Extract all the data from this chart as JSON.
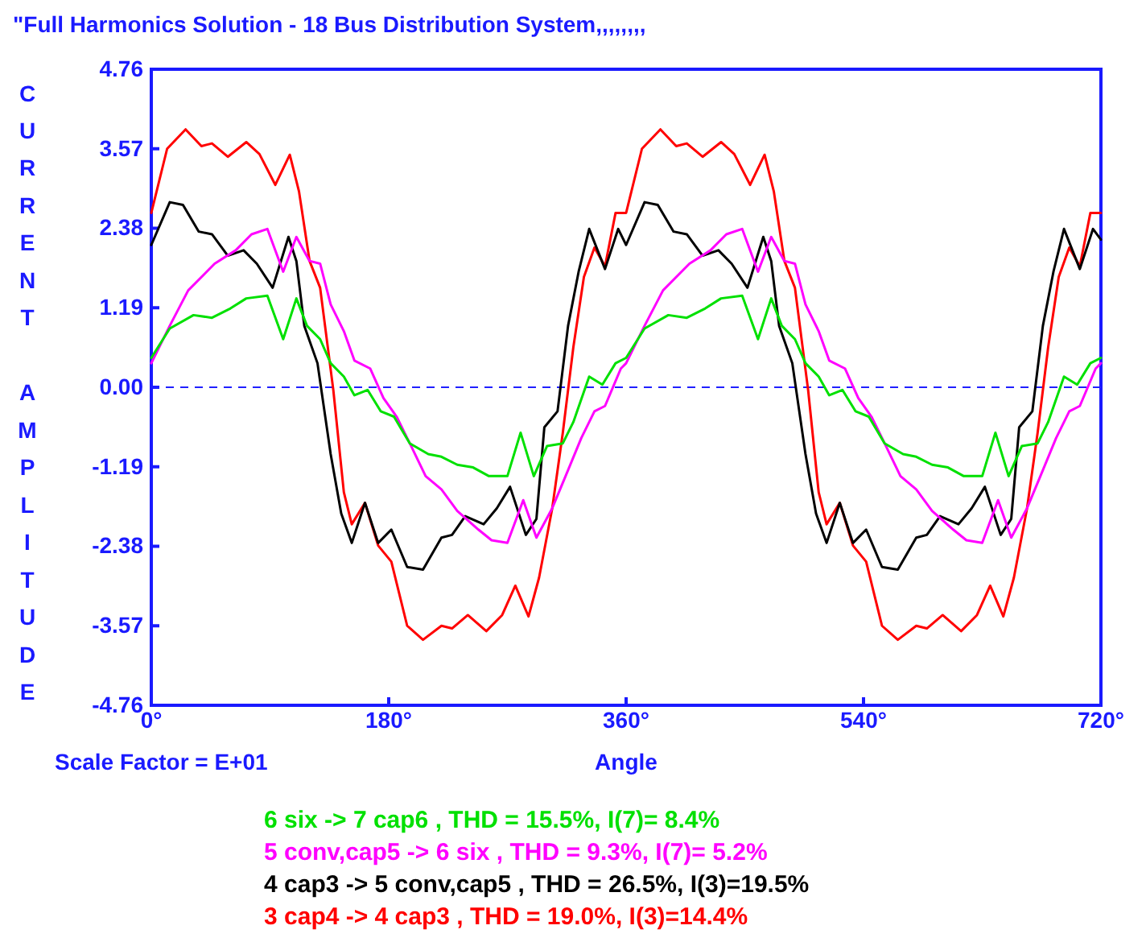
{
  "chart_data": {
    "type": "line",
    "title": "\"Full Harmonics Solution - 18 Bus Distribution System,,,,,,,,",
    "xlabel": "Angle",
    "ylabel": "CURRENT AMPLITUDE",
    "annotations": [
      "Scale Factor = E+01"
    ],
    "xlim": [
      0,
      720
    ],
    "xticks": [
      {
        "value": 0,
        "label": "0°"
      },
      {
        "value": 180,
        "label": "180°"
      },
      {
        "value": 360,
        "label": "360°"
      },
      {
        "value": 540,
        "label": "540°"
      },
      {
        "value": 720,
        "label": "720°"
      }
    ],
    "ylim": [
      -4.76,
      4.76
    ],
    "yticks": [
      -4.76,
      -3.57,
      -2.38,
      -1.19,
      {
        "value": 0,
        "label": "0.00"
      },
      1.19,
      2.38,
      3.57,
      4.76
    ],
    "grid": false,
    "legend": "bottom",
    "marker": "none",
    "line_style": "solid",
    "ref_lines": [
      {
        "axis": "y",
        "value": 0,
        "color": "#2020ff",
        "line_style": "dashed"
      }
    ],
    "series": [
      {
        "name": "6 six -> 7 cap6 , THD = 15.5%, I(7)= 8.4%",
        "color": "#00e000",
        "x": [
          0,
          14,
          32,
          46,
          60,
          72,
          88,
          100,
          110,
          118,
          128,
          136,
          146,
          154,
          164,
          174,
          184,
          196,
          210,
          220,
          232,
          244,
          256,
          270,
          280,
          290,
          300,
          312,
          320,
          332,
          342,
          352,
          360,
          374,
          392,
          406,
          420,
          432,
          448,
          460,
          470,
          478,
          488,
          496,
          506,
          514,
          524,
          534,
          544,
          556,
          570,
          580,
          592,
          604,
          616,
          630,
          640,
          650,
          660,
          672,
          680,
          692,
          702,
          712,
          720
        ],
        "values": [
          0.44,
          0.88,
          1.08,
          1.04,
          1.18,
          1.33,
          1.37,
          0.72,
          1.33,
          0.92,
          0.72,
          0.36,
          0.16,
          -0.12,
          -0.04,
          -0.36,
          -0.44,
          -0.84,
          -1.0,
          -1.04,
          -1.16,
          -1.2,
          -1.33,
          -1.33,
          -0.68,
          -1.33,
          -0.88,
          -0.84,
          -0.52,
          0.16,
          0.04,
          0.36,
          0.44,
          0.88,
          1.08,
          1.04,
          1.18,
          1.33,
          1.37,
          0.72,
          1.33,
          0.92,
          0.72,
          0.36,
          0.16,
          -0.12,
          -0.04,
          -0.36,
          -0.44,
          -0.84,
          -1.0,
          -1.04,
          -1.16,
          -1.2,
          -1.33,
          -1.33,
          -0.68,
          -1.33,
          -0.88,
          -0.84,
          -0.52,
          0.16,
          0.04,
          0.36,
          0.44
        ]
      },
      {
        "name": "5 conv,cap5 -> 6 six , THD = 9.3%, I(7)= 5.2%",
        "color": "#ff00ff",
        "x": [
          0,
          14,
          28,
          48,
          64,
          76,
          88,
          100,
          110,
          120,
          128,
          136,
          146,
          154,
          166,
          176,
          186,
          196,
          208,
          220,
          232,
          248,
          258,
          270,
          282,
          292,
          304,
          316,
          326,
          336,
          344,
          356,
          360,
          374,
          388,
          408,
          424,
          436,
          448,
          460,
          470,
          480,
          488,
          496,
          506,
          514,
          526,
          536,
          546,
          556,
          568,
          580,
          592,
          608,
          618,
          630,
          642,
          652,
          664,
          676,
          686,
          696,
          704,
          716,
          720
        ],
        "values": [
          0.36,
          0.92,
          1.45,
          1.85,
          2.05,
          2.29,
          2.37,
          1.73,
          2.25,
          1.89,
          1.85,
          1.24,
          0.84,
          0.4,
          0.28,
          -0.16,
          -0.44,
          -0.84,
          -1.33,
          -1.53,
          -1.85,
          -2.13,
          -2.29,
          -2.33,
          -1.69,
          -2.25,
          -1.81,
          -1.24,
          -0.76,
          -0.36,
          -0.28,
          0.28,
          0.36,
          0.92,
          1.45,
          1.85,
          2.05,
          2.29,
          2.37,
          1.73,
          2.25,
          1.89,
          1.85,
          1.24,
          0.84,
          0.4,
          0.28,
          -0.16,
          -0.44,
          -0.84,
          -1.33,
          -1.53,
          -1.85,
          -2.13,
          -2.29,
          -2.33,
          -1.69,
          -2.25,
          -1.81,
          -1.24,
          -0.76,
          -0.36,
          -0.28,
          0.28,
          0.36
        ]
      },
      {
        "name": "4 cap3 -> 5 conv,cap5 , THD = 26.5%, I(3)=19.5%",
        "color": "#000000",
        "x": [
          0,
          14,
          24,
          36,
          46,
          58,
          70,
          80,
          92,
          104,
          110,
          116,
          126,
          136,
          144,
          152,
          162,
          172,
          182,
          194,
          206,
          220,
          228,
          238,
          252,
          262,
          272,
          284,
          292,
          298,
          308,
          316,
          324,
          332,
          344,
          354,
          360,
          374,
          384,
          396,
          406,
          418,
          430,
          440,
          452,
          464,
          470,
          476,
          486,
          496,
          504,
          512,
          522,
          532,
          542,
          554,
          566,
          580,
          588,
          598,
          612,
          622,
          632,
          644,
          652,
          658,
          668,
          676,
          684,
          692,
          704,
          714,
          720
        ],
        "values": [
          2.13,
          2.77,
          2.73,
          2.33,
          2.29,
          1.97,
          2.05,
          1.85,
          1.49,
          2.25,
          1.89,
          0.92,
          0.36,
          -1.0,
          -1.89,
          -2.33,
          -1.73,
          -2.33,
          -2.13,
          -2.69,
          -2.73,
          -2.25,
          -2.21,
          -1.93,
          -2.05,
          -1.81,
          -1.49,
          -2.21,
          -1.97,
          -0.6,
          -0.36,
          0.92,
          1.73,
          2.37,
          1.77,
          2.37,
          2.13,
          2.77,
          2.73,
          2.33,
          2.29,
          1.97,
          2.05,
          1.85,
          1.49,
          2.25,
          1.89,
          0.92,
          0.36,
          -1.0,
          -1.89,
          -2.33,
          -1.73,
          -2.33,
          -2.13,
          -2.69,
          -2.73,
          -2.25,
          -2.21,
          -1.93,
          -2.05,
          -1.81,
          -1.49,
          -2.21,
          -1.97,
          -0.6,
          -0.36,
          0.92,
          1.73,
          2.37,
          1.77,
          2.37,
          2.21
        ]
      },
      {
        "name": "3 cap4 -> 4 cap3 , THD = 19.0%, I(3)=14.4%",
        "color": "#ff0000",
        "x": [
          0,
          12,
          26,
          38,
          46,
          58,
          72,
          82,
          94,
          105,
          112,
          120,
          128,
          138,
          146,
          152,
          162,
          172,
          182,
          194,
          206,
          220,
          228,
          240,
          254,
          266,
          276,
          286,
          294,
          304,
          312,
          320,
          328,
          336,
          344,
          352,
          360,
          372,
          386,
          398,
          406,
          418,
          432,
          442,
          454,
          465,
          472,
          480,
          488,
          498,
          506,
          512,
          522,
          532,
          542,
          554,
          566,
          580,
          588,
          600,
          614,
          626,
          636,
          646,
          654,
          664,
          672,
          680,
          688,
          696,
          704,
          712,
          720
        ],
        "values": [
          2.61,
          3.57,
          3.86,
          3.61,
          3.65,
          3.45,
          3.67,
          3.49,
          3.03,
          3.48,
          2.93,
          1.89,
          1.49,
          -0.04,
          -1.57,
          -2.05,
          -1.73,
          -2.37,
          -2.61,
          -3.57,
          -3.78,
          -3.57,
          -3.61,
          -3.41,
          -3.65,
          -3.41,
          -2.97,
          -3.43,
          -2.85,
          -1.81,
          -0.68,
          0.6,
          1.65,
          2.09,
          1.81,
          2.61,
          2.61,
          3.57,
          3.86,
          3.61,
          3.65,
          3.45,
          3.67,
          3.49,
          3.03,
          3.48,
          2.93,
          1.89,
          1.49,
          -0.04,
          -1.57,
          -2.05,
          -1.73,
          -2.37,
          -2.61,
          -3.57,
          -3.78,
          -3.57,
          -3.61,
          -3.41,
          -3.65,
          -3.41,
          -2.97,
          -3.43,
          -2.85,
          -1.81,
          -0.68,
          0.6,
          1.65,
          2.09,
          1.81,
          2.61,
          2.61
        ]
      }
    ]
  }
}
